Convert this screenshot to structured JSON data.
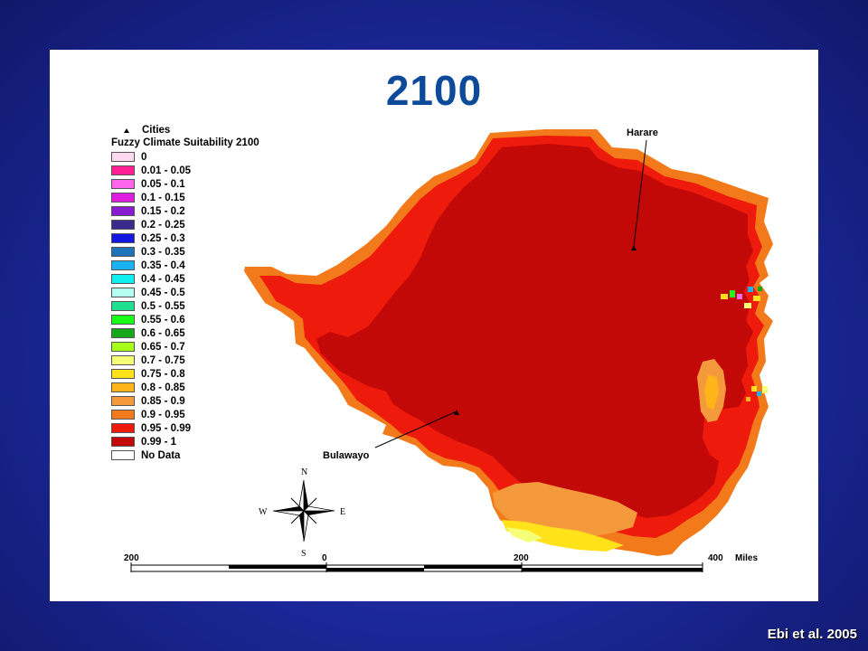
{
  "title": "2100",
  "legend": {
    "cities_label": "Cities",
    "title": "Fuzzy Climate Suitability 2100",
    "classes": [
      {
        "label": "0",
        "color": "#ffd9ef"
      },
      {
        "label": "0.01 - 0.05",
        "color": "#ff1f94"
      },
      {
        "label": "0.05 - 0.1",
        "color": "#ff66ee"
      },
      {
        "label": "0.1 - 0.15",
        "color": "#e01ce0"
      },
      {
        "label": "0.15 - 0.2",
        "color": "#8a1ccf"
      },
      {
        "label": "0.2 - 0.25",
        "color": "#3a2a8e"
      },
      {
        "label": "0.25 - 0.3",
        "color": "#1218e0"
      },
      {
        "label": "0.3 - 0.35",
        "color": "#1f73b8"
      },
      {
        "label": "0.35 - 0.4",
        "color": "#1ab2f0"
      },
      {
        "label": "0.4 - 0.45",
        "color": "#10f0f0"
      },
      {
        "label": "0.45 - 0.5",
        "color": "#b5fff0"
      },
      {
        "label": "0.5 - 0.55",
        "color": "#1fe090"
      },
      {
        "label": "0.55 - 0.6",
        "color": "#1aff1a"
      },
      {
        "label": "0.6 - 0.65",
        "color": "#16a81a"
      },
      {
        "label": "0.65 - 0.7",
        "color": "#a8ff1a"
      },
      {
        "label": "0.7 - 0.75",
        "color": "#f5ff78"
      },
      {
        "label": "0.75 - 0.8",
        "color": "#ffe21a"
      },
      {
        "label": "0.8 - 0.85",
        "color": "#ffb51a"
      },
      {
        "label": "0.85 - 0.9",
        "color": "#f59a3c"
      },
      {
        "label": "0.9 - 0.95",
        "color": "#f27a1a"
      },
      {
        "label": "0.95 - 0.99",
        "color": "#ee1a0c"
      },
      {
        "label": "0.99 - 1",
        "color": "#c30808"
      },
      {
        "label": "No Data",
        "color": "#ffffff"
      }
    ]
  },
  "cities": [
    {
      "name": "Harare"
    },
    {
      "name": "Bulawayo"
    }
  ],
  "compass": {
    "n": "N",
    "s": "S",
    "e": "E",
    "w": "W"
  },
  "scale_bar": {
    "labels": [
      "200",
      "0",
      "200",
      "400"
    ],
    "unit": "Miles"
  },
  "citation": "Ebi et al. 2005"
}
